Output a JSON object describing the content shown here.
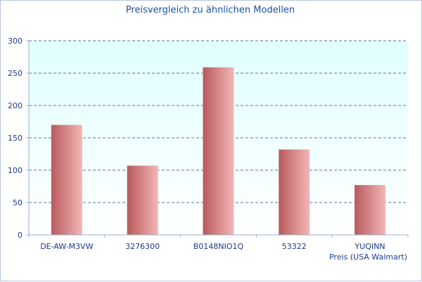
{
  "chart_data": {
    "type": "bar",
    "title": "Preisvergleich zu ähnlichen Modellen",
    "xlabel": "Preis (USA Walmart)",
    "ylabel": "",
    "categories": [
      "DE-AW-M3VW",
      "3276300",
      "B0148NIO1Q",
      "53322",
      "YUQINN"
    ],
    "values": [
      170,
      107,
      259,
      132,
      77
    ],
    "ylim": [
      0,
      300
    ],
    "yticks": [
      0,
      50,
      100,
      150,
      200,
      250,
      300
    ],
    "grid": true,
    "colors": {
      "plot_bg_top": "#e0ffff",
      "plot_bg_bottom": "#ffffff",
      "bar_dark": "#b85a5c",
      "bar_light": "#f4b6b6",
      "grid": "#2a4a7a",
      "axis": "#9ab0d0",
      "text": "#1a3a8a"
    }
  }
}
